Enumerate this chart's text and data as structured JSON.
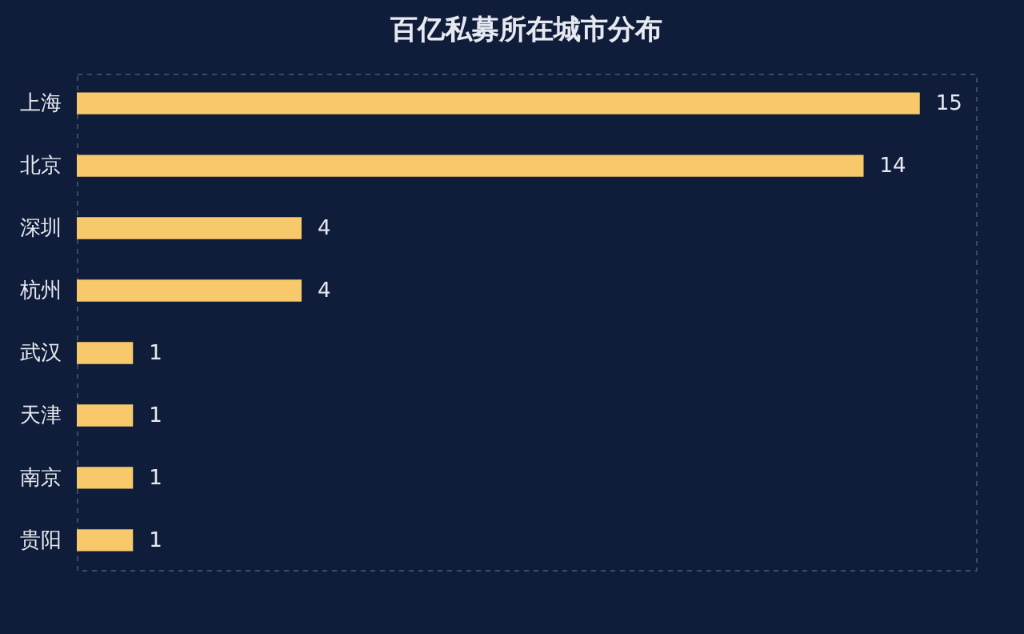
{
  "chart_data": {
    "type": "bar",
    "orientation": "horizontal",
    "title": "百亿私募所在城市分布",
    "categories": [
      "上海",
      "北京",
      "深圳",
      "杭州",
      "武汉",
      "天津",
      "南京",
      "贵阳"
    ],
    "values": [
      15,
      14,
      4,
      4,
      1,
      1,
      1,
      1
    ],
    "color": "#f7c96b",
    "data_labels": true,
    "xlim": [
      0,
      16
    ]
  }
}
